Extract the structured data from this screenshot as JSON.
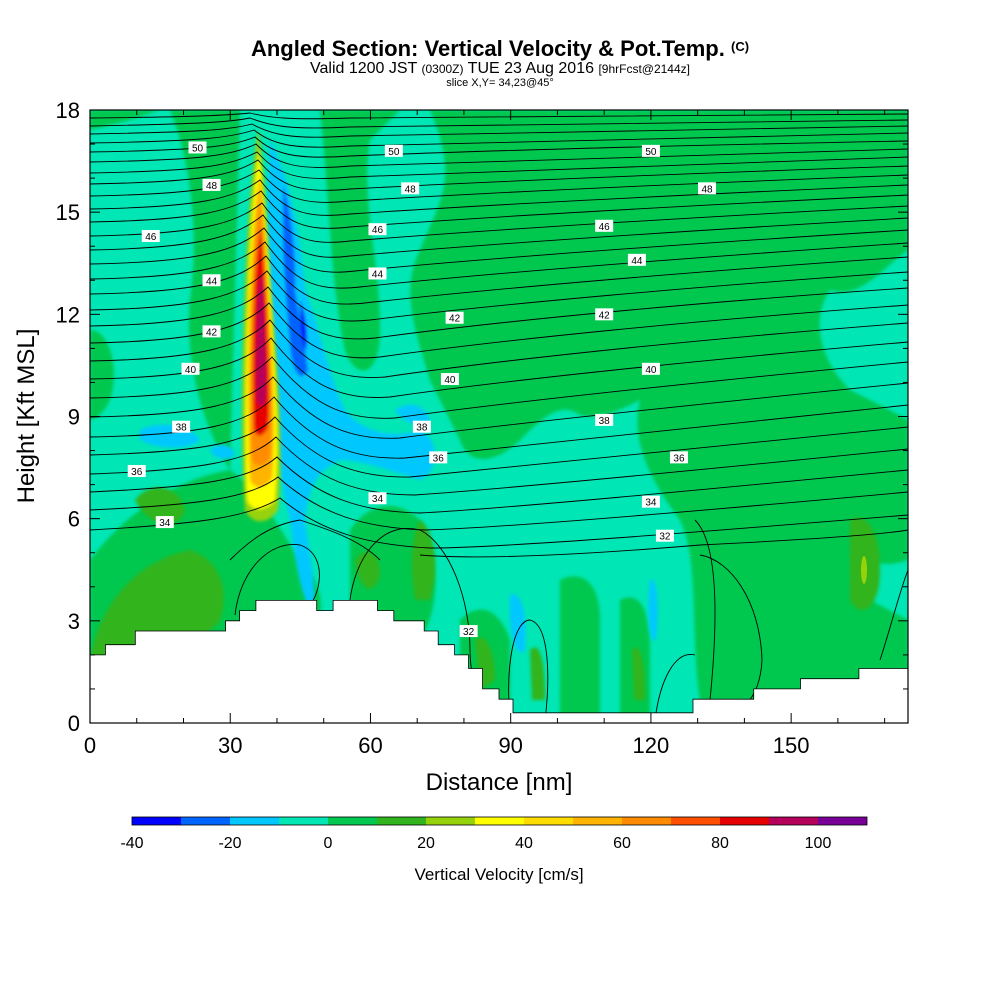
{
  "chart_data": {
    "type": "heatmap",
    "title": "Angled Section: Vertical Velocity & Pot.Temp.",
    "title_tag": "(C)",
    "subtitle_valid": "Valid 1200 JST",
    "subtitle_utc": "(0300Z)",
    "subtitle_date": "TUE 23 Aug 2016",
    "subtitle_fcst": "[9hrFcst@2144z]",
    "slice_text": "slice X,Y= 34,23@45°",
    "xlabel": "Distance [nm]",
    "ylabel": "Height [Kft MSL]",
    "xlim": [
      0,
      175
    ],
    "ylim": [
      0,
      18
    ],
    "x_ticks": [
      0,
      30,
      60,
      90,
      120,
      150
    ],
    "y_ticks": [
      0,
      3,
      6,
      9,
      12,
      15,
      18
    ],
    "colorbar": {
      "title": "Vertical Velocity [cm/s]",
      "bounds": [
        -40,
        -30,
        -20,
        -10,
        0,
        10,
        20,
        30,
        40,
        50,
        60,
        70,
        80,
        90,
        100,
        110
      ],
      "colors": [
        "#0000ff",
        "#0064ff",
        "#00c8ff",
        "#00e6b4",
        "#00c850",
        "#32b41e",
        "#96d20a",
        "#ffff00",
        "#ffdc00",
        "#ffb400",
        "#ff8c00",
        "#ff5000",
        "#e60000",
        "#b4005a",
        "#780096"
      ],
      "tick_values": [
        -40,
        -20,
        0,
        20,
        40,
        60,
        80,
        100
      ]
    },
    "terrain_heights_kft": [
      [
        0,
        2.0
      ],
      [
        3.3,
        2.0
      ],
      [
        3.3,
        2.3
      ],
      [
        9.7,
        2.3
      ],
      [
        9.7,
        2.7
      ],
      [
        29,
        2.7
      ],
      [
        29,
        3.0
      ],
      [
        32,
        3.0
      ],
      [
        32,
        3.3
      ],
      [
        35.5,
        3.3
      ],
      [
        35.5,
        3.6
      ],
      [
        48.5,
        3.6
      ],
      [
        48.5,
        3.3
      ],
      [
        52,
        3.3
      ],
      [
        52,
        3.6
      ],
      [
        61.5,
        3.6
      ],
      [
        61.5,
        3.3
      ],
      [
        65,
        3.3
      ],
      [
        65,
        3.0
      ],
      [
        71.5,
        3.0
      ],
      [
        71.5,
        2.7
      ],
      [
        74.5,
        2.7
      ],
      [
        74.5,
        2.3
      ],
      [
        78,
        2.3
      ],
      [
        78,
        2.0
      ],
      [
        81,
        2.0
      ],
      [
        81,
        1.6
      ],
      [
        84,
        1.6
      ],
      [
        84,
        1.0
      ],
      [
        87.5,
        1.0
      ],
      [
        87.5,
        0.7
      ],
      [
        90.5,
        0.7
      ],
      [
        90.5,
        0.3
      ],
      [
        129,
        0.3
      ],
      [
        129,
        0.7
      ],
      [
        142,
        0.7
      ],
      [
        142,
        1.0
      ],
      [
        152,
        1.0
      ],
      [
        152,
        1.3
      ],
      [
        164.5,
        1.3
      ],
      [
        164.5,
        1.6
      ],
      [
        175,
        1.6
      ]
    ],
    "theta_labels": [
      {
        "value": "50",
        "x": 23,
        "y": 16.9
      },
      {
        "value": "48",
        "x": 26,
        "y": 15.8
      },
      {
        "value": "46",
        "x": 13,
        "y": 14.3
      },
      {
        "value": "44",
        "x": 26,
        "y": 13.0
      },
      {
        "value": "42",
        "x": 26,
        "y": 11.5
      },
      {
        "value": "40",
        "x": 21.5,
        "y": 10.4
      },
      {
        "value": "38",
        "x": 19.5,
        "y": 8.7
      },
      {
        "value": "36",
        "x": 10,
        "y": 7.4
      },
      {
        "value": "34",
        "x": 16,
        "y": 5.9
      },
      {
        "value": "50",
        "x": 65,
        "y": 16.8
      },
      {
        "value": "48",
        "x": 68.5,
        "y": 15.7
      },
      {
        "value": "46",
        "x": 61.5,
        "y": 14.5
      },
      {
        "value": "44",
        "x": 61.5,
        "y": 13.2
      },
      {
        "value": "42",
        "x": 78,
        "y": 11.9
      },
      {
        "value": "40",
        "x": 77,
        "y": 10.1
      },
      {
        "value": "38",
        "x": 71,
        "y": 8.7
      },
      {
        "value": "36",
        "x": 74.5,
        "y": 7.8
      },
      {
        "value": "34",
        "x": 61.5,
        "y": 6.6
      },
      {
        "value": "32",
        "x": 81,
        "y": 2.7
      },
      {
        "value": "50",
        "x": 120,
        "y": 16.8
      },
      {
        "value": "48",
        "x": 132,
        "y": 15.7
      },
      {
        "value": "46",
        "x": 110,
        "y": 14.6
      },
      {
        "value": "44",
        "x": 117,
        "y": 13.6
      },
      {
        "value": "42",
        "x": 110,
        "y": 12.0
      },
      {
        "value": "40",
        "x": 120,
        "y": 10.4
      },
      {
        "value": "38",
        "x": 110,
        "y": 8.9
      },
      {
        "value": "36",
        "x": 126,
        "y": 7.8
      },
      {
        "value": "34",
        "x": 120,
        "y": 6.5
      },
      {
        "value": "32",
        "x": 123,
        "y": 5.5
      }
    ]
  }
}
